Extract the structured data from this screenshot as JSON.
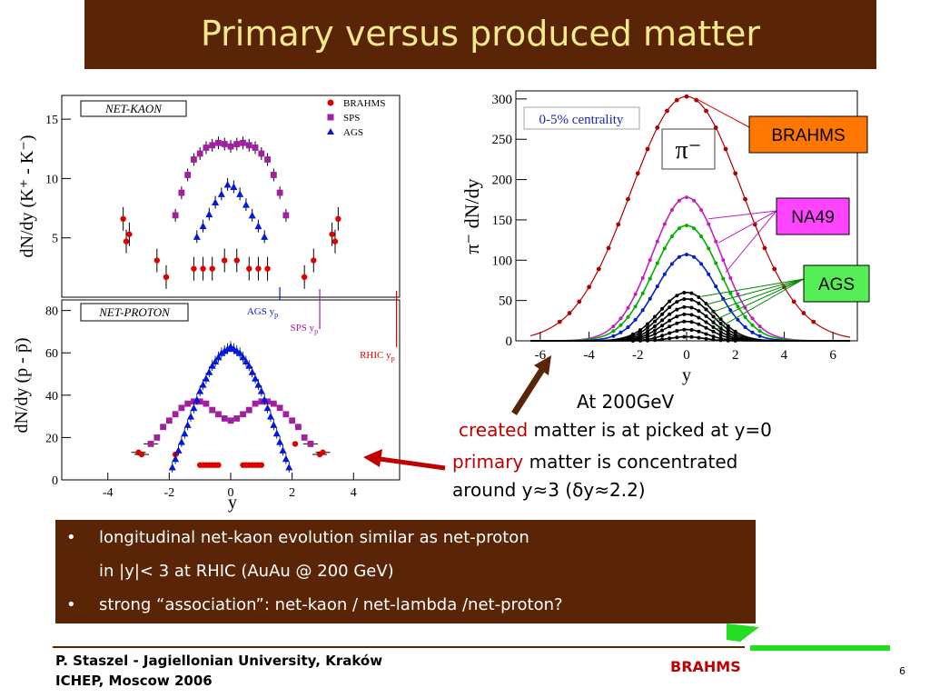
{
  "slide": {
    "title": "Primary versus produced matter",
    "page_number": "6"
  },
  "annotations": {
    "energy": "At 200GeV",
    "created_word": "created",
    "created_rest": " matter is at picked at y=0",
    "primary_word": "primary",
    "primary_rest": " matter is concentrated",
    "around": "around y≈3 (δy≈2.2)"
  },
  "bullets": [
    {
      "text": "longitudinal net-kaon evolution similar as net-proton",
      "marker": "•"
    },
    {
      "text": "in |y|< 3 at RHIC (AuAu @ 200 GeV)",
      "marker": ""
    },
    {
      "text": "strong “association”: net-kaon / net-lambda /net-proton?",
      "marker": "•"
    }
  ],
  "footer": {
    "line1": "P. Staszel - Jagiellonian University, Kraków",
    "line2": "ICHEP, Moscow 2006",
    "logo": "BRAHMS"
  },
  "colors": {
    "title_bg": "#5a2507",
    "title_text": "#f4e98a",
    "brahms": "#e00000",
    "sps": "#a020a0",
    "ags": "#0018e0",
    "na49_box": "#ff44ff",
    "ags_box": "#55ee55",
    "brahms_box": "#ff7700",
    "logo_green": "#22dd22"
  },
  "chart_data": [
    {
      "type": "scatter",
      "panel_label": "NET-KAON",
      "ylabel": "dN/dy (K⁺ - K⁻)",
      "xlim": [
        -5.5,
        5.5
      ],
      "ylim": [
        0,
        17
      ],
      "yticks": [
        "5",
        "10",
        "15"
      ],
      "legend": [
        "BRAHMS",
        "SPS",
        "AGS"
      ],
      "legend_position": "top-right",
      "series": [
        {
          "name": "BRAHMS",
          "color": "#e00000",
          "marker": "circle",
          "x": [
            -3.5,
            -3.4,
            -3.3,
            -2.4,
            -2.1,
            -1.2,
            -0.9,
            -0.6,
            -0.2,
            0.2,
            0.6,
            0.9,
            1.2,
            2.4,
            2.7,
            3.3,
            3.4,
            3.5
          ],
          "y": [
            6.6,
            4.7,
            5.3,
            3.1,
            1.7,
            2.4,
            2.4,
            2.4,
            3.1,
            3.1,
            2.4,
            2.4,
            2.4,
            1.7,
            3.1,
            5.3,
            4.7,
            6.6
          ]
        },
        {
          "name": "SPS",
          "color": "#a020a0",
          "marker": "square",
          "x": [
            -1.8,
            -1.6,
            -1.4,
            -1.2,
            -1.0,
            -0.8,
            -0.6,
            -0.4,
            -0.2,
            0.0,
            0.2,
            0.4,
            0.6,
            0.8,
            1.0,
            1.2,
            1.4,
            1.6,
            1.8
          ],
          "y": [
            6.9,
            8.8,
            10.3,
            11.6,
            12.1,
            12.6,
            12.8,
            13.0,
            12.9,
            12.7,
            12.9,
            13.0,
            12.8,
            12.6,
            12.1,
            11.6,
            10.3,
            8.8,
            6.9
          ]
        },
        {
          "name": "AGS",
          "color": "#0018e0",
          "marker": "triangle",
          "x": [
            -1.1,
            -0.9,
            -0.7,
            -0.5,
            -0.3,
            -0.1,
            0.1,
            0.3,
            0.5,
            0.7,
            0.9,
            1.1
          ],
          "y": [
            5.1,
            6.0,
            7.0,
            8.0,
            8.7,
            9.5,
            9.3,
            8.7,
            7.8,
            6.9,
            6.0,
            5.1
          ]
        }
      ]
    },
    {
      "type": "scatter",
      "panel_label": "NET-PROTON",
      "xlabel": "y",
      "ylabel": "dN/dy (p - p̄)",
      "xlim": [
        -5.5,
        5.5
      ],
      "ylim": [
        0,
        85
      ],
      "xticks": [
        "-4",
        "-2",
        "0",
        "2",
        "4"
      ],
      "yticks": [
        "0",
        "20",
        "40",
        "60",
        "80"
      ],
      "beam_rapidity_markers": [
        {
          "label": "AGS y",
          "sub": "p",
          "y": 1.6,
          "color": "#0018e0"
        },
        {
          "label": "SPS y",
          "sub": "p",
          "y": 2.9,
          "color": "#a020a0"
        },
        {
          "label": "RHIC y",
          "sub": "p",
          "y": 5.4,
          "color": "#e00000"
        }
      ],
      "series": [
        {
          "name": "BRAHMS",
          "color": "#e00000",
          "marker": "circle",
          "x": [
            -3.0,
            -2.9,
            -1.8,
            -1.0,
            -0.9,
            -0.8,
            -0.7,
            -0.6,
            -0.5,
            -0.4,
            0.4,
            0.5,
            0.6,
            0.7,
            0.8,
            0.9,
            1.0,
            2.1,
            2.9,
            3.0
          ],
          "y": [
            13,
            12,
            12,
            7,
            7,
            7,
            7,
            7,
            7,
            7,
            7,
            7,
            7,
            7,
            7,
            7,
            7,
            17,
            12,
            13
          ]
        },
        {
          "name": "SPS",
          "color": "#a020a0",
          "marker": "square",
          "x": [
            -2.6,
            -2.4,
            -2.2,
            -2.0,
            -1.8,
            -1.6,
            -1.4,
            -1.2,
            -1.0,
            -0.8,
            -0.6,
            -0.4,
            -0.2,
            0.0,
            0.2,
            0.4,
            0.6,
            0.8,
            1.0,
            1.2,
            1.4,
            1.6,
            1.8,
            2.0,
            2.2,
            2.4,
            2.6
          ],
          "y": [
            17,
            20,
            25,
            28,
            31,
            34,
            36,
            37,
            37,
            36,
            33,
            31,
            29,
            28,
            29,
            31,
            33,
            36,
            37,
            37,
            36,
            34,
            31,
            28,
            25,
            20,
            17
          ]
        },
        {
          "name": "AGS",
          "color": "#0018e0",
          "marker": "triangle",
          "x": [
            -1.9,
            -1.8,
            -1.7,
            -1.6,
            -1.5,
            -1.4,
            -1.3,
            -1.2,
            -1.1,
            -1.0,
            -0.9,
            -0.8,
            -0.7,
            -0.6,
            -0.5,
            -0.4,
            -0.3,
            -0.2,
            -0.1,
            0.0,
            0.1,
            0.2,
            0.3,
            0.4,
            0.5,
            0.6,
            0.7,
            0.8,
            0.9,
            1.0,
            1.1,
            1.2,
            1.3,
            1.4,
            1.5,
            1.6,
            1.7,
            1.8,
            1.9
          ],
          "y": [
            6,
            10,
            14,
            18,
            22,
            26,
            30,
            34,
            38,
            42,
            45,
            48,
            51,
            54,
            56,
            58,
            60,
            61,
            62,
            63,
            62,
            61,
            60,
            58,
            56,
            54,
            51,
            48,
            45,
            42,
            38,
            34,
            30,
            26,
            22,
            18,
            14,
            10,
            6
          ]
        }
      ]
    },
    {
      "type": "line",
      "xlabel": "y",
      "ylabel": "π⁻ dN/dy",
      "annotation": "0-5% centrality",
      "particle_label": "π⁻",
      "xlim": [
        -7,
        7
      ],
      "ylim": [
        0,
        310
      ],
      "xticks": [
        "-6",
        "-4",
        "-2",
        "0",
        "2",
        "4",
        "6"
      ],
      "yticks": [
        "0",
        "50",
        "100",
        "150",
        "200",
        "250",
        "300"
      ],
      "experiment_labels": [
        "BRAHMS",
        "NA49",
        "AGS"
      ],
      "series": [
        {
          "name": "BRAHMS",
          "color": "#b00000",
          "amplitude": 303,
          "sigma": 2.3
        },
        {
          "name": "NA49",
          "color": "#c020c0",
          "amplitude": 178,
          "sigma": 1.4
        },
        {
          "name": "NA49",
          "color": "#00b000",
          "amplitude": 143,
          "sigma": 1.35
        },
        {
          "name": "NA49",
          "color": "#0020c0",
          "amplitude": 107,
          "sigma": 1.25
        },
        {
          "name": "AGS",
          "color": "#000000",
          "amplitude": 60,
          "sigma": 1.1
        },
        {
          "name": "AGS",
          "color": "#000000",
          "amplitude": 52,
          "sigma": 1.05
        },
        {
          "name": "AGS",
          "color": "#000000",
          "amplitude": 42,
          "sigma": 1.0
        },
        {
          "name": "AGS",
          "color": "#000000",
          "amplitude": 33,
          "sigma": 0.95
        },
        {
          "name": "AGS",
          "color": "#000000",
          "amplitude": 24,
          "sigma": 0.9
        },
        {
          "name": "AGS",
          "color": "#000000",
          "amplitude": 14,
          "sigma": 0.8
        },
        {
          "name": "AGS",
          "color": "#000000",
          "amplitude": 5,
          "sigma": 0.7
        }
      ]
    }
  ]
}
